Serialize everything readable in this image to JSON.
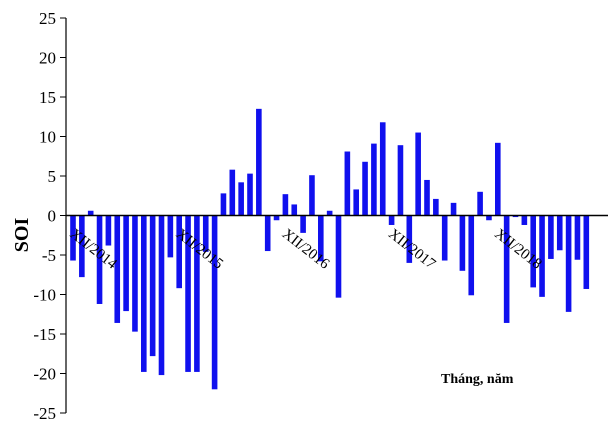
{
  "chart_data": {
    "type": "bar",
    "ylabel": "SOI",
    "xlabel": "Tháng, năm",
    "ylim": [
      -25,
      25
    ],
    "yticks": [
      25,
      20,
      15,
      10,
      5,
      0,
      -5,
      -10,
      -15,
      -20,
      -25
    ],
    "x_tick_labels": [
      {
        "label": "XII/2014",
        "index": 0
      },
      {
        "label": "XII/2015",
        "index": 12
      },
      {
        "label": "XII/2016",
        "index": 24
      },
      {
        "label": "XII/2017",
        "index": 36
      },
      {
        "label": "XII/2018",
        "index": 48
      }
    ],
    "bar_color": "#1010ee",
    "series": [
      {
        "values": [
          -5.7,
          -7.8,
          0.6,
          -11.2,
          -3.8,
          -13.6,
          -12.1,
          -14.7,
          -19.8,
          -17.8,
          -20.2,
          -5.3,
          -9.2,
          -19.8,
          -19.8,
          -4.6,
          -22.0,
          2.8,
          5.8,
          4.2,
          5.3,
          13.5,
          -4.5,
          -0.6,
          2.7,
          1.4,
          -2.2,
          5.1,
          -5.8,
          0.6,
          -10.4,
          8.1,
          3.3,
          6.8,
          9.1,
          11.8,
          -1.2,
          8.9,
          -6.0,
          10.5,
          4.5,
          2.1,
          -5.7,
          1.6,
          -7.0,
          -10.1,
          3.0,
          -0.6,
          9.2,
          -13.6,
          -0.2,
          -1.2,
          -9.1,
          -10.3,
          -5.5,
          -4.4,
          -12.2,
          -5.6,
          -9.3
        ]
      }
    ]
  }
}
